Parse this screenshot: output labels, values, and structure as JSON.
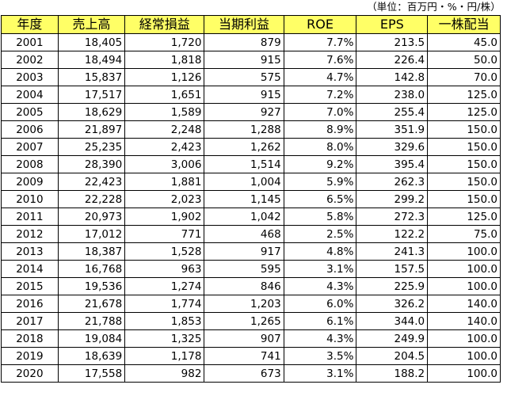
{
  "unit_note": "（単位：百万円・%・円/株）",
  "headers": [
    "年度",
    "売上高",
    "経常損益",
    "当期利益",
    "ROE",
    "EPS",
    "一株配当"
  ],
  "rows": [
    [
      "2001",
      "18,405",
      "1,720",
      "879",
      "7.7%",
      "213.5",
      "45.0"
    ],
    [
      "2002",
      "18,494",
      "1,818",
      "915",
      "7.6%",
      "226.4",
      "50.0"
    ],
    [
      "2003",
      "15,837",
      "1,126",
      "575",
      "4.7%",
      "142.8",
      "70.0"
    ],
    [
      "2004",
      "17,517",
      "1,651",
      "915",
      "7.2%",
      "238.0",
      "125.0"
    ],
    [
      "2005",
      "18,629",
      "1,589",
      "927",
      "7.0%",
      "255.4",
      "125.0"
    ],
    [
      "2006",
      "21,897",
      "2,248",
      "1,288",
      "8.9%",
      "351.9",
      "150.0"
    ],
    [
      "2007",
      "25,235",
      "2,423",
      "1,262",
      "8.0%",
      "329.6",
      "150.0"
    ],
    [
      "2008",
      "28,390",
      "3,006",
      "1,514",
      "9.2%",
      "395.4",
      "150.0"
    ],
    [
      "2009",
      "22,423",
      "1,881",
      "1,004",
      "5.9%",
      "262.3",
      "150.0"
    ],
    [
      "2010",
      "22,228",
      "2,023",
      "1,145",
      "6.5%",
      "299.2",
      "150.0"
    ],
    [
      "2011",
      "20,973",
      "1,902",
      "1,042",
      "5.8%",
      "272.3",
      "125.0"
    ],
    [
      "2012",
      "17,012",
      "771",
      "468",
      "2.5%",
      "122.2",
      "75.0"
    ],
    [
      "2013",
      "18,387",
      "1,528",
      "917",
      "4.8%",
      "241.3",
      "100.0"
    ],
    [
      "2014",
      "16,768",
      "963",
      "595",
      "3.1%",
      "157.5",
      "100.0"
    ],
    [
      "2015",
      "19,536",
      "1,274",
      "846",
      "4.3%",
      "225.9",
      "100.0"
    ],
    [
      "2016",
      "21,678",
      "1,774",
      "1,203",
      "6.0%",
      "326.2",
      "140.0"
    ],
    [
      "2017",
      "21,788",
      "1,853",
      "1,265",
      "6.1%",
      "344.0",
      "140.0"
    ],
    [
      "2018",
      "19,084",
      "1,325",
      "907",
      "4.3%",
      "249.9",
      "100.0"
    ],
    [
      "2019",
      "18,639",
      "1,178",
      "741",
      "3.5%",
      "204.5",
      "100.0"
    ],
    [
      "2020",
      "17,558",
      "982",
      "673",
      "3.1%",
      "188.2",
      "100.0"
    ]
  ],
  "colors": {
    "header_bg": "#ffff66",
    "border": "#000000"
  }
}
